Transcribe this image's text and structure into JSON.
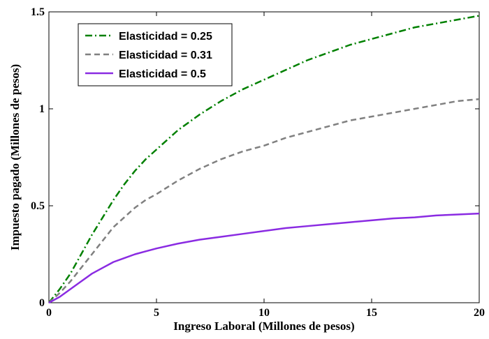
{
  "chart_data": {
    "type": "line",
    "title": "",
    "xlabel": "Ingreso Laboral (Millones de pesos)",
    "ylabel": "Impuesto pagado (Millones de pesos)",
    "xlim": [
      0,
      20
    ],
    "ylim": [
      0,
      1.5
    ],
    "x_ticks": [
      "0",
      "5",
      "10",
      "15",
      "20"
    ],
    "y_ticks": [
      "0",
      "0.5",
      "1",
      "1.5"
    ],
    "grid": false,
    "legend_position": "top-left",
    "x": [
      0,
      0.5,
      1,
      1.5,
      2,
      2.5,
      3,
      3.5,
      4,
      4.5,
      5,
      6,
      7,
      8,
      9,
      10,
      11,
      12,
      13,
      14,
      15,
      16,
      17,
      18,
      19,
      20
    ],
    "series": [
      {
        "name": "Elasticidad = 0.25",
        "color": "#008000",
        "dash": "dash-dot",
        "values": [
          0,
          0.07,
          0.15,
          0.25,
          0.35,
          0.44,
          0.53,
          0.61,
          0.68,
          0.74,
          0.79,
          0.89,
          0.97,
          1.04,
          1.1,
          1.15,
          1.2,
          1.25,
          1.29,
          1.33,
          1.36,
          1.39,
          1.42,
          1.44,
          1.46,
          1.48
        ]
      },
      {
        "name": "Elasticidad = 0.31",
        "color": "#808080",
        "dash": "dashed",
        "values": [
          0,
          0.05,
          0.11,
          0.18,
          0.25,
          0.32,
          0.39,
          0.44,
          0.49,
          0.53,
          0.56,
          0.63,
          0.69,
          0.74,
          0.78,
          0.81,
          0.85,
          0.88,
          0.91,
          0.94,
          0.96,
          0.98,
          1.0,
          1.02,
          1.04,
          1.05
        ]
      },
      {
        "name": "Elasticidad = 0.5",
        "color": "#8A2BE2",
        "dash": "solid",
        "values": [
          0,
          0.03,
          0.07,
          0.11,
          0.15,
          0.18,
          0.21,
          0.23,
          0.25,
          0.265,
          0.28,
          0.305,
          0.325,
          0.34,
          0.355,
          0.37,
          0.385,
          0.395,
          0.405,
          0.415,
          0.425,
          0.435,
          0.44,
          0.45,
          0.455,
          0.46
        ]
      }
    ]
  }
}
